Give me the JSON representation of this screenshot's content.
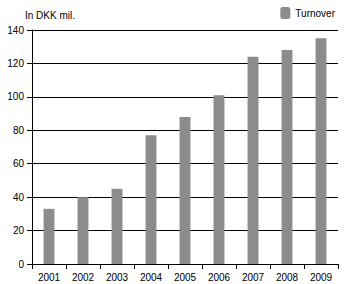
{
  "chart_data": {
    "type": "bar",
    "y_label": "In DKK mil.",
    "categories": [
      "2001",
      "2002",
      "2003",
      "2004",
      "2005",
      "2006",
      "2007",
      "2008",
      "2009"
    ],
    "series": [
      {
        "name": "Turnover",
        "color": "#8c8c8c",
        "values": [
          33,
          40,
          45,
          77,
          88,
          101,
          124,
          128,
          135
        ]
      }
    ],
    "ylim": [
      0,
      140
    ],
    "yticks": [
      0,
      20,
      40,
      60,
      80,
      100,
      120,
      140
    ],
    "grid": true,
    "legend": "top-right"
  }
}
